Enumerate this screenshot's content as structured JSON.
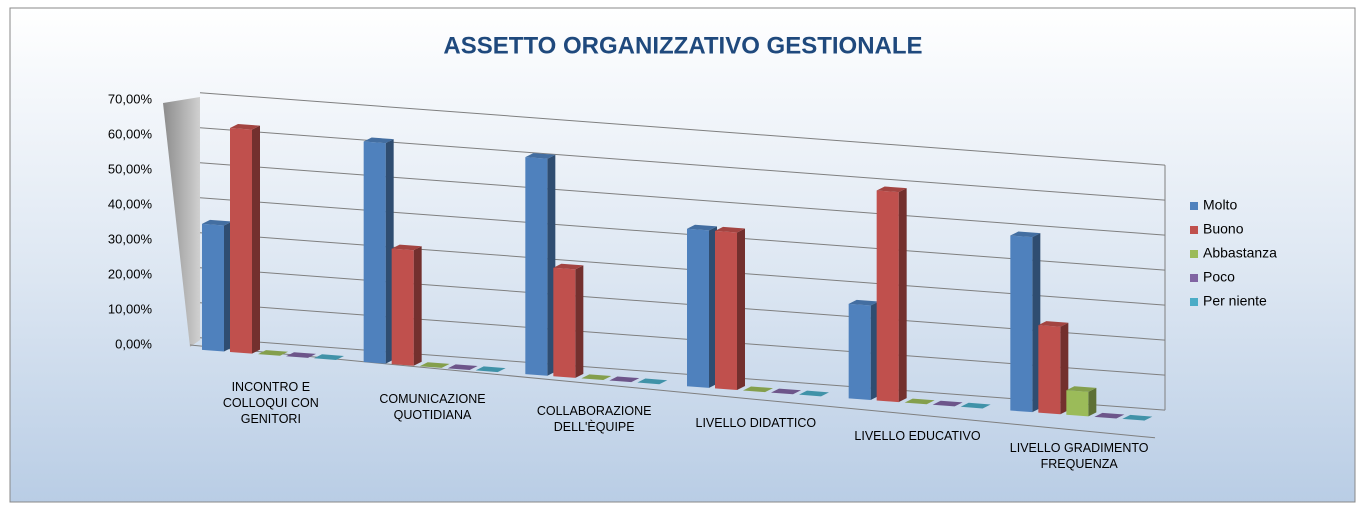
{
  "chart_data": {
    "type": "bar3d",
    "title": "ASSETTO ORGANIZZATIVO GESTIONALE",
    "categories": [
      "INCONTRO E COLLOQUI CON GENITORI",
      "COMUNICAZIONE QUOTIDIANA",
      "COLLABORAZIONE DELL'ÈQUIPE",
      "LIVELLO DIDATTICO",
      "LIVELLO EDUCATIVO",
      "LIVELLO GRADIMENTO FREQUENZA"
    ],
    "series": [
      {
        "name": "Molto",
        "color": "#4f81bd",
        "values": [
          36,
          63,
          62,
          45,
          27,
          50
        ]
      },
      {
        "name": "Buono",
        "color": "#c0504d",
        "values": [
          64,
          33,
          31,
          45,
          60,
          25
        ]
      },
      {
        "name": "Abbastanza",
        "color": "#9bbb59",
        "values": [
          0,
          0,
          0,
          0,
          0,
          7
        ]
      },
      {
        "name": "Poco",
        "color": "#8064a2",
        "values": [
          0,
          0,
          0,
          0,
          0,
          0
        ]
      },
      {
        "name": "Per niente",
        "color": "#4bacc6",
        "values": [
          0,
          0,
          0,
          0,
          0,
          0
        ]
      }
    ],
    "ylim": [
      0,
      70
    ],
    "yticks": [
      {
        "value": 0,
        "label": "0,00%"
      },
      {
        "value": 10,
        "label": "10,00%"
      },
      {
        "value": 20,
        "label": "20,00%"
      },
      {
        "value": 30,
        "label": "30,00%"
      },
      {
        "value": 40,
        "label": "40,00%"
      },
      {
        "value": 50,
        "label": "50,00%"
      },
      {
        "value": 60,
        "label": "60,00%"
      },
      {
        "value": 70,
        "label": "70,00%"
      }
    ],
    "grid": true,
    "legend": "right"
  }
}
